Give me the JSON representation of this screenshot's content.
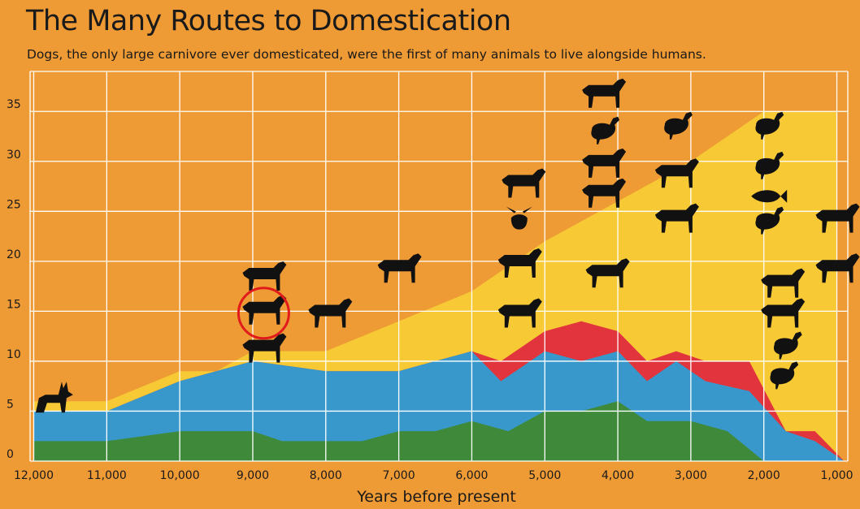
{
  "chart_data": {
    "type": "area",
    "title": "The Many Routes to Domestication",
    "subtitle": "Dogs, the only large carnivore ever domesticated, were the first of many animals to live alongside humans.",
    "xlabel": "Years before present",
    "ylabel": "",
    "x_ticks": [
      12000,
      11000,
      10000,
      9000,
      8000,
      7000,
      6000,
      5000,
      4000,
      3000,
      2000,
      1000
    ],
    "x_tick_labels": [
      "12,000",
      "11,000",
      "10,000",
      "9,000",
      "8,000",
      "7,000",
      "6,000",
      "5,000",
      "4,000",
      "3,000",
      "2,000",
      "1,000"
    ],
    "y_ticks": [
      0,
      5,
      10,
      15,
      20,
      25,
      30,
      35
    ],
    "y_tick_labels": [
      "0",
      "5",
      "10",
      "15",
      "20",
      "25",
      "30",
      "35"
    ],
    "xlim": [
      12050,
      850
    ],
    "ylim": [
      0,
      39
    ],
    "grid": true,
    "stacked_cumulative": true,
    "series": [
      {
        "color": "#f6c935",
        "points": [
          [
            12000,
            5
          ],
          [
            11000,
            5
          ],
          [
            10600,
            6
          ],
          [
            10000,
            8
          ],
          [
            9400,
            8
          ],
          [
            9000,
            10
          ],
          [
            8700,
            9
          ],
          [
            8200,
            9
          ],
          [
            7800,
            7
          ],
          [
            7400,
            9
          ],
          [
            6800,
            10
          ],
          [
            6200,
            11
          ],
          [
            6000,
            11
          ],
          [
            5600,
            10
          ],
          [
            5000,
            11
          ],
          [
            4400,
            12
          ],
          [
            4100,
            10
          ],
          [
            3800,
            9
          ],
          [
            3400,
            8
          ],
          [
            3000,
            9
          ],
          [
            2600,
            9
          ],
          [
            2000,
            7
          ],
          [
            1700,
            3
          ],
          [
            1300,
            1.5
          ],
          [
            900,
            0
          ],
          [
            850,
            35
          ],
          [
            1000,
            35
          ],
          [
            2000,
            35
          ],
          [
            2100,
            35
          ],
          [
            3600,
            30
          ],
          [
            3700,
            27
          ],
          [
            4000,
            26
          ],
          [
            4300,
            26
          ],
          [
            5300,
            22
          ],
          [
            5800,
            17
          ],
          [
            6200,
            17
          ],
          [
            6700,
            15
          ],
          [
            7000,
            14
          ],
          [
            7500,
            13
          ],
          [
            7900,
            12
          ],
          [
            8400,
            11
          ],
          [
            9100,
            11
          ],
          [
            9600,
            9
          ],
          [
            10000,
            9
          ],
          [
            10600,
            7
          ],
          [
            11000,
            6
          ],
          [
            12000,
            6
          ]
        ],
        "fill_only": true
      }
    ],
    "layers": [
      {
        "color": "#f6c935",
        "label": "",
        "x": [
          12000,
          11000,
          10000,
          9500,
          9000,
          8000,
          7000,
          6000,
          5000,
          4000,
          3000,
          2000,
          1000
        ],
        "y": [
          6,
          6,
          9,
          9,
          11,
          11,
          14,
          17,
          22,
          26,
          30,
          35,
          35
        ]
      },
      {
        "color": "#e2343c",
        "label": "",
        "x": [
          12000,
          11000,
          10000,
          9000,
          8000,
          7000,
          6000,
          5600,
          5000,
          4500,
          4000,
          3600,
          3200,
          2800,
          2200,
          1700,
          1300,
          900
        ],
        "y": [
          5,
          5,
          8,
          10,
          9,
          9,
          11,
          10,
          13,
          14,
          13,
          10,
          11,
          10,
          10,
          3,
          3,
          0
        ]
      },
      {
        "color": "#3898cb",
        "label": "",
        "x": [
          12000,
          11000,
          10000,
          9000,
          8000,
          7000,
          6000,
          5600,
          5000,
          4500,
          4000,
          3600,
          3200,
          2800,
          2200,
          1700,
          1300,
          900
        ],
        "y": [
          5,
          5,
          8,
          10,
          9,
          9,
          11,
          8,
          11,
          10,
          11,
          8,
          10,
          8,
          7,
          3,
          2,
          0
        ]
      },
      {
        "color": "#3e8a3a",
        "label": "",
        "x": [
          12000,
          11000,
          10000,
          9000,
          8600,
          8000,
          7500,
          7000,
          6500,
          6000,
          5500,
          5000,
          4500,
          4000,
          3600,
          3000,
          2500,
          2000,
          1500,
          1000
        ],
        "y": [
          2,
          2,
          3,
          3,
          2,
          2,
          2,
          3,
          3,
          4,
          3,
          5,
          5,
          6,
          4,
          4,
          3,
          0,
          0,
          0
        ]
      }
    ],
    "annotations": [
      {
        "icon": "dog-icon",
        "x": 11750,
        "y": 6
      },
      {
        "icon": "cattle-icon",
        "x": 8850,
        "y": 18.2
      },
      {
        "icon": "goat-icon",
        "x": 8850,
        "y": 14.8,
        "highlighted": true
      },
      {
        "icon": "sheep-icon",
        "x": 8850,
        "y": 11
      },
      {
        "icon": "pig-icon",
        "x": 7950,
        "y": 14.5
      },
      {
        "icon": "yak-icon",
        "x": 7000,
        "y": 19
      },
      {
        "icon": "cat-icon",
        "x": 5300,
        "y": 27.5
      },
      {
        "icon": "bee-icon",
        "x": 5350,
        "y": 24
      },
      {
        "icon": "bactrian-camel-icon",
        "x": 5350,
        "y": 19.5
      },
      {
        "icon": "water-buffalo-icon",
        "x": 5350,
        "y": 14.5
      },
      {
        "icon": "horse-icon",
        "x": 4200,
        "y": 36.5
      },
      {
        "icon": "chicken-icon",
        "x": 4200,
        "y": 33
      },
      {
        "icon": "llama-icon",
        "x": 4200,
        "y": 29.5
      },
      {
        "icon": "guinea-pig-icon",
        "x": 4200,
        "y": 26.5
      },
      {
        "icon": "donkey-icon",
        "x": 4150,
        "y": 18.5
      },
      {
        "icon": "pigeon-icon",
        "x": 3200,
        "y": 33.5
      },
      {
        "icon": "dromedary-icon",
        "x": 3200,
        "y": 28.5
      },
      {
        "icon": "alpaca-icon",
        "x": 3200,
        "y": 24
      },
      {
        "icon": "goose-icon",
        "x": 1950,
        "y": 33.5
      },
      {
        "icon": "duck-icon",
        "x": 1950,
        "y": 29.5
      },
      {
        "icon": "carp-icon",
        "x": 1950,
        "y": 26.5
      },
      {
        "icon": "turkey-icon",
        "x": 1950,
        "y": 24
      },
      {
        "icon": "yak-2-icon",
        "x": 1750,
        "y": 17.5
      },
      {
        "icon": "gayal-icon",
        "x": 1750,
        "y": 14.5
      },
      {
        "icon": "muscovy-duck-icon",
        "x": 1700,
        "y": 11.5
      },
      {
        "icon": "guineafowl-icon",
        "x": 1750,
        "y": 8.5
      },
      {
        "icon": "reindeer-icon",
        "x": 1000,
        "y": 24
      },
      {
        "icon": "ferret-icon",
        "x": 1000,
        "y": 19
      }
    ]
  },
  "colors": {
    "background": "#ee9a35",
    "grid": "#ffffff",
    "highlight": "#e11b1b",
    "silhouette": "#111111"
  }
}
